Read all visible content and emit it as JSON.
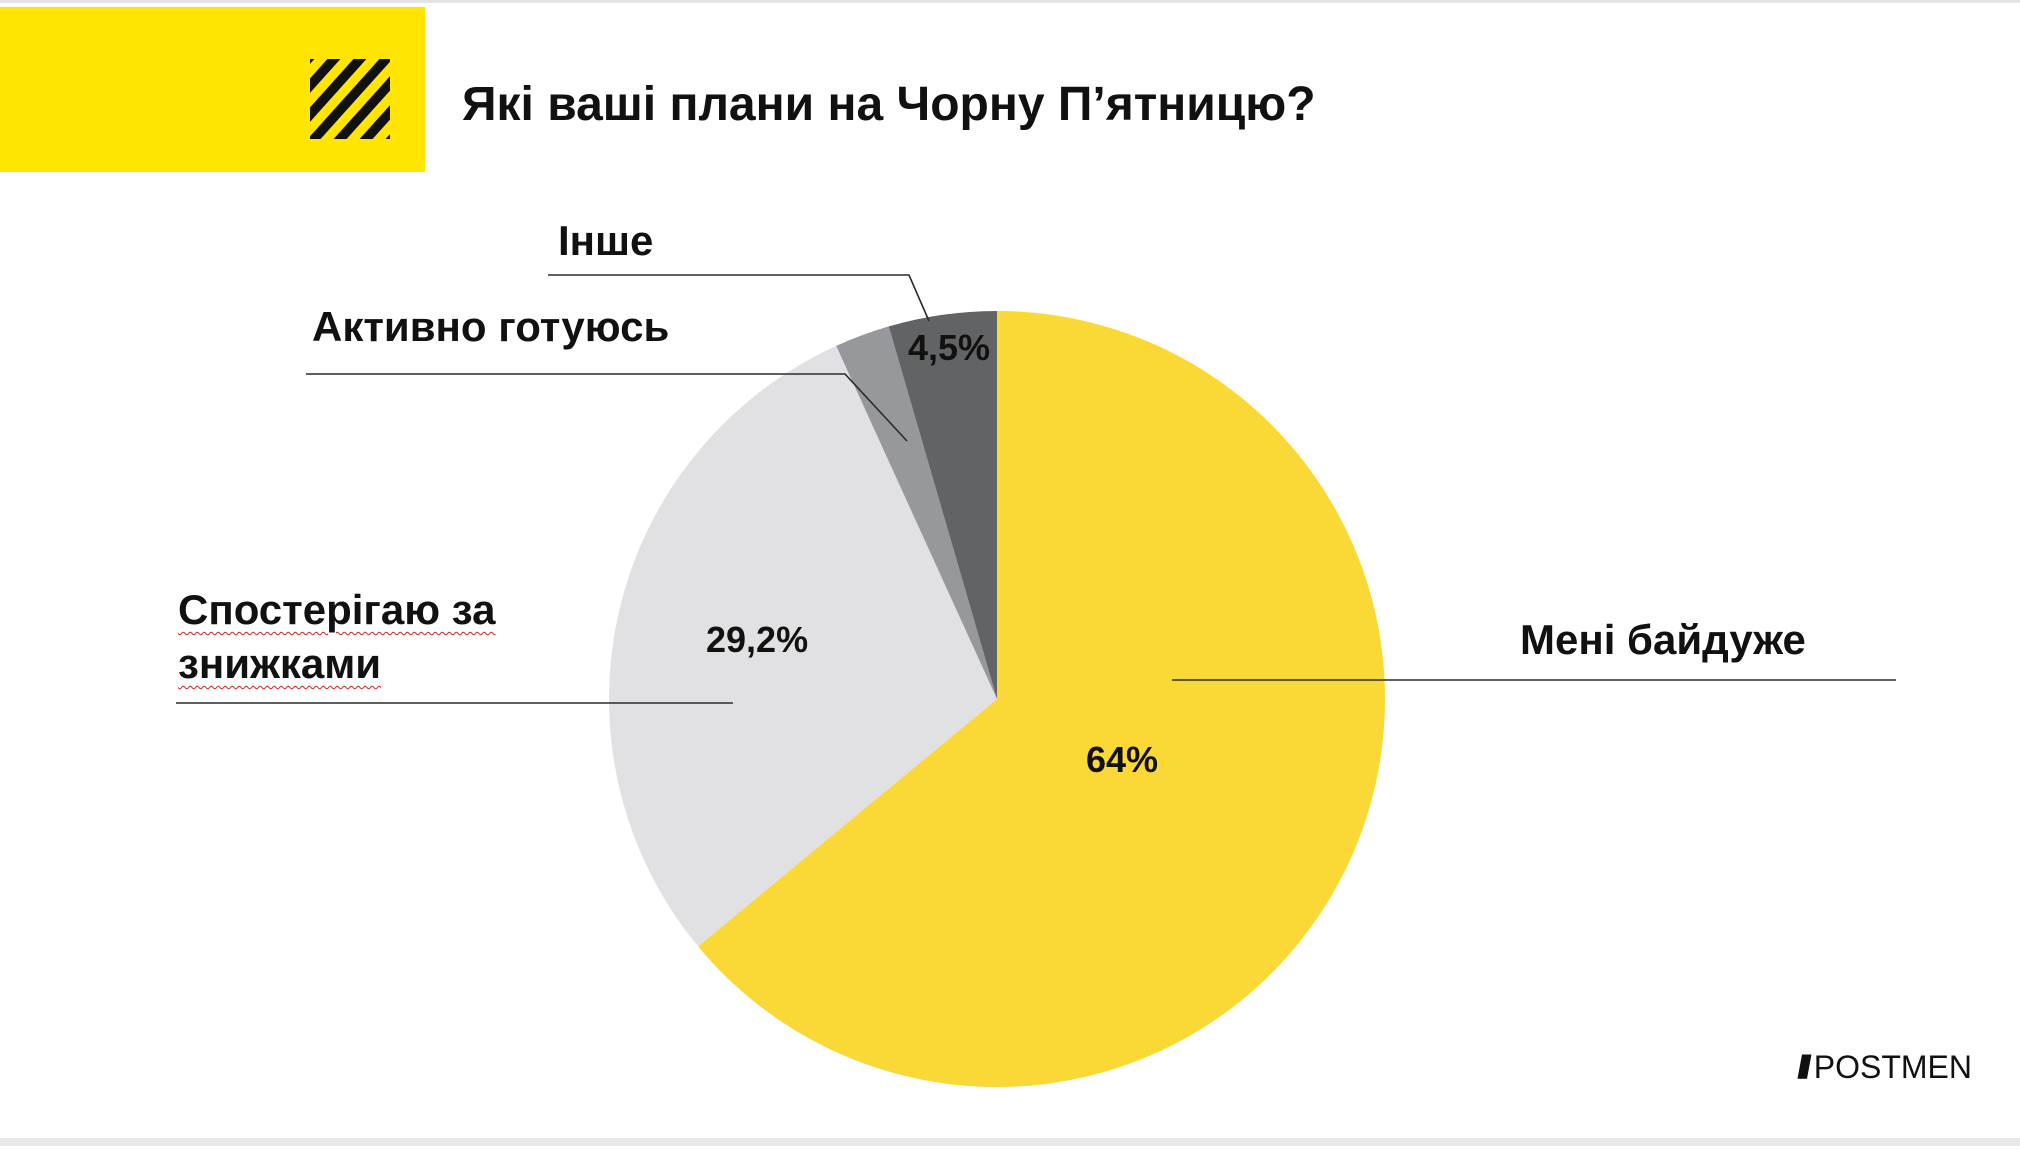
{
  "title": "Які ваші плани на Чорну П’ятницю?",
  "logo": "POSTMEN",
  "colors": {
    "brand_yellow": "#ffe500"
  },
  "chart_data": {
    "type": "pie",
    "title": "Які ваші плани на Чорну П’ятницю?",
    "slices": [
      {
        "label": "Мені байдуже",
        "value": 64,
        "value_label": "64%",
        "color": "#fad835"
      },
      {
        "label": "Спостерігаю за знижками",
        "value": 29.2,
        "value_label": "29,2%",
        "color": "#e1e1e3"
      },
      {
        "label": "Активно готуюсь",
        "value": 2.3,
        "value_label": "",
        "color": "#96989c"
      },
      {
        "label": "Інше",
        "value": 4.5,
        "value_label": "4,5%",
        "color": "#626365"
      }
    ]
  }
}
